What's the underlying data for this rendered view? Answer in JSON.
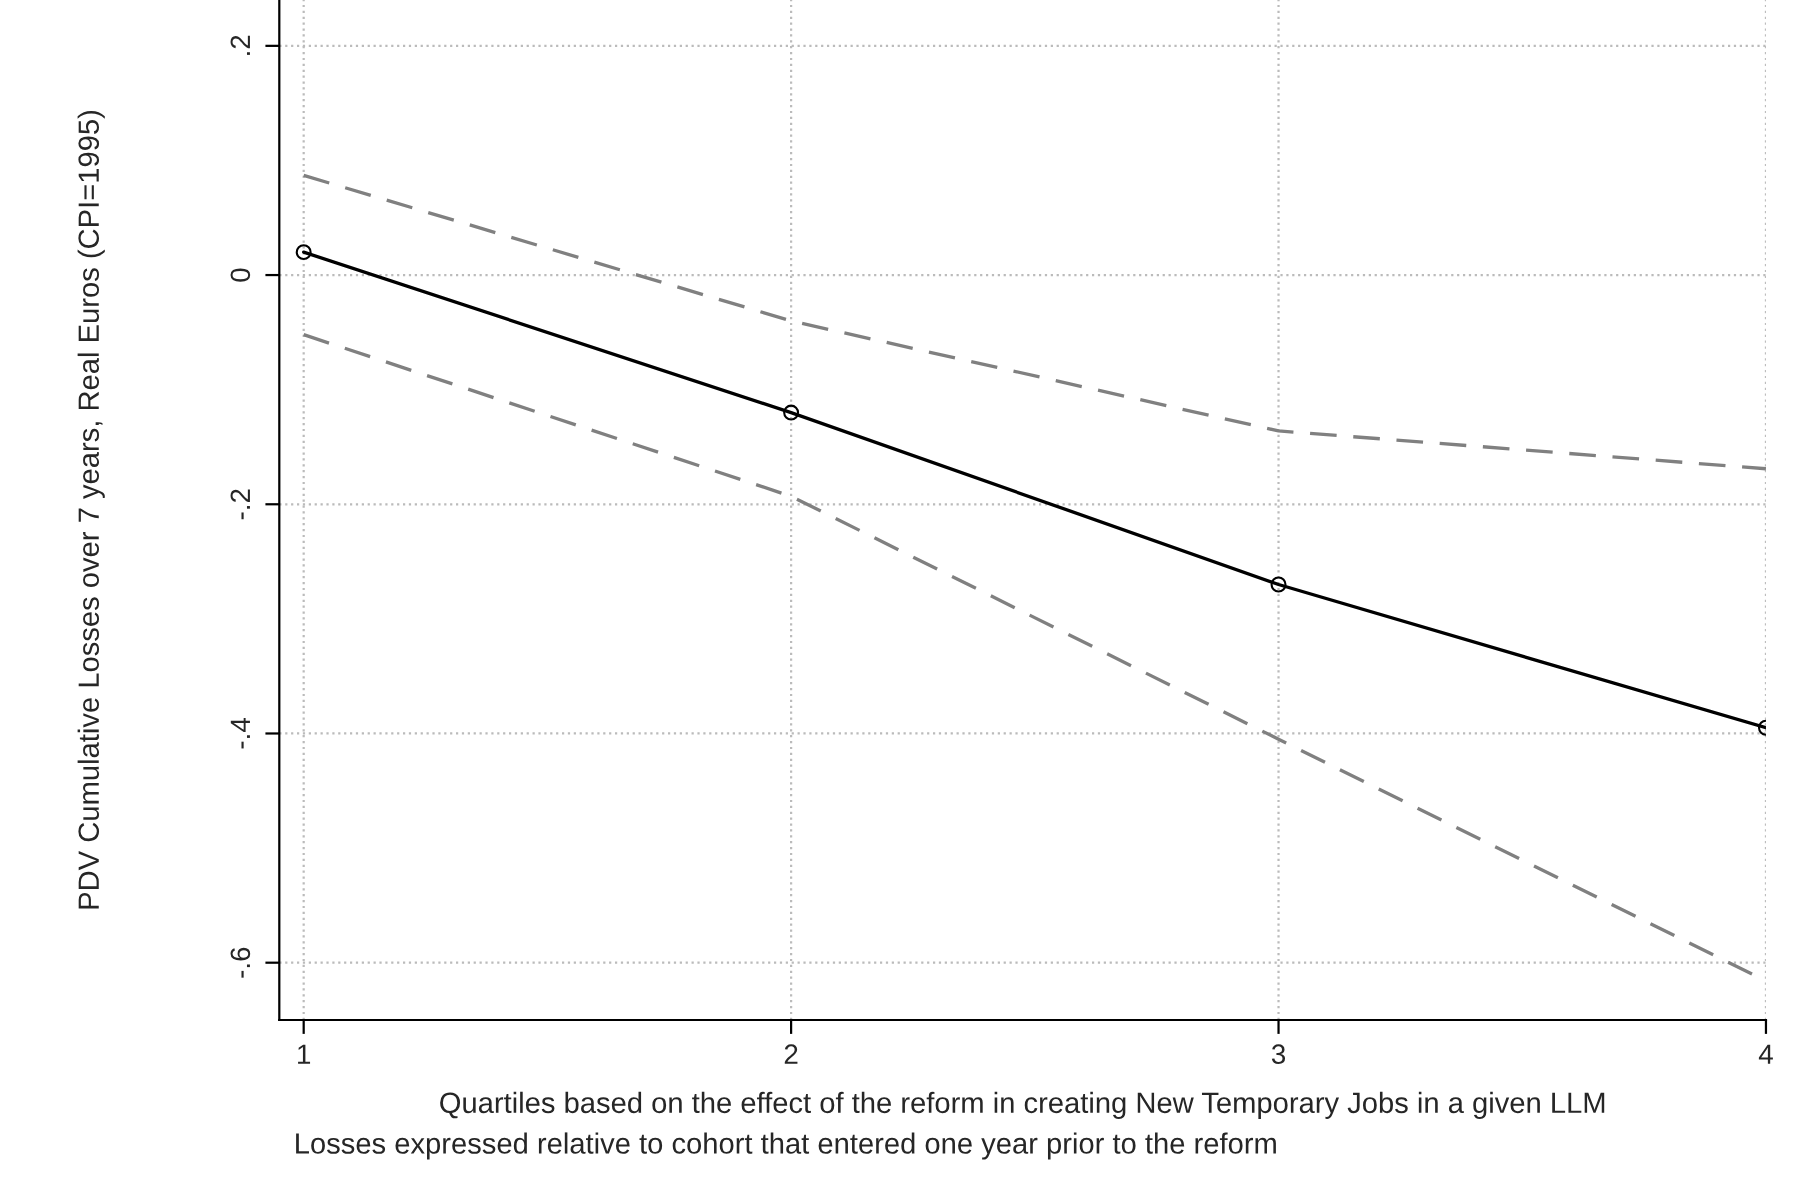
{
  "chart_data": {
    "type": "line",
    "xlabel": "Quartiles based on the effect of the reform in creating New Temporary Jobs in a given LLM",
    "ylabel": "PDV Cumulative Losses over 7 years, Real Euros (CPI=1995)",
    "annotations": [
      "Losses expressed relative to cohort that entered one year prior to the reform"
    ],
    "x": [
      1,
      2,
      3,
      4
    ],
    "series": [
      {
        "color": "#000000",
        "values": [
          0.02,
          -0.12,
          -0.27,
          -0.395
        ],
        "marker": "circle",
        "line_style": "solid"
      },
      {
        "color": "#808080",
        "values": [
          0.087,
          -0.04,
          -0.136,
          -0.169
        ],
        "marker": "none",
        "line_style": "dashed"
      },
      {
        "color": "#808080",
        "values": [
          -0.052,
          -0.193,
          -0.405,
          -0.616
        ],
        "marker": "none",
        "line_style": "dashed"
      }
    ],
    "xlim": [
      0.95,
      4.0
    ],
    "xticks": [
      1,
      2,
      3,
      4
    ],
    "ylim": [
      -0.65,
      0.24
    ],
    "yticks": [
      {
        "value": -0.6,
        "label": "-.6"
      },
      {
        "value": -0.4,
        "label": "-.4"
      },
      {
        "value": -0.2,
        "label": "-.2"
      },
      0,
      {
        "value": 0.2,
        "label": ".2"
      }
    ],
    "grid": true,
    "legend": false
  }
}
